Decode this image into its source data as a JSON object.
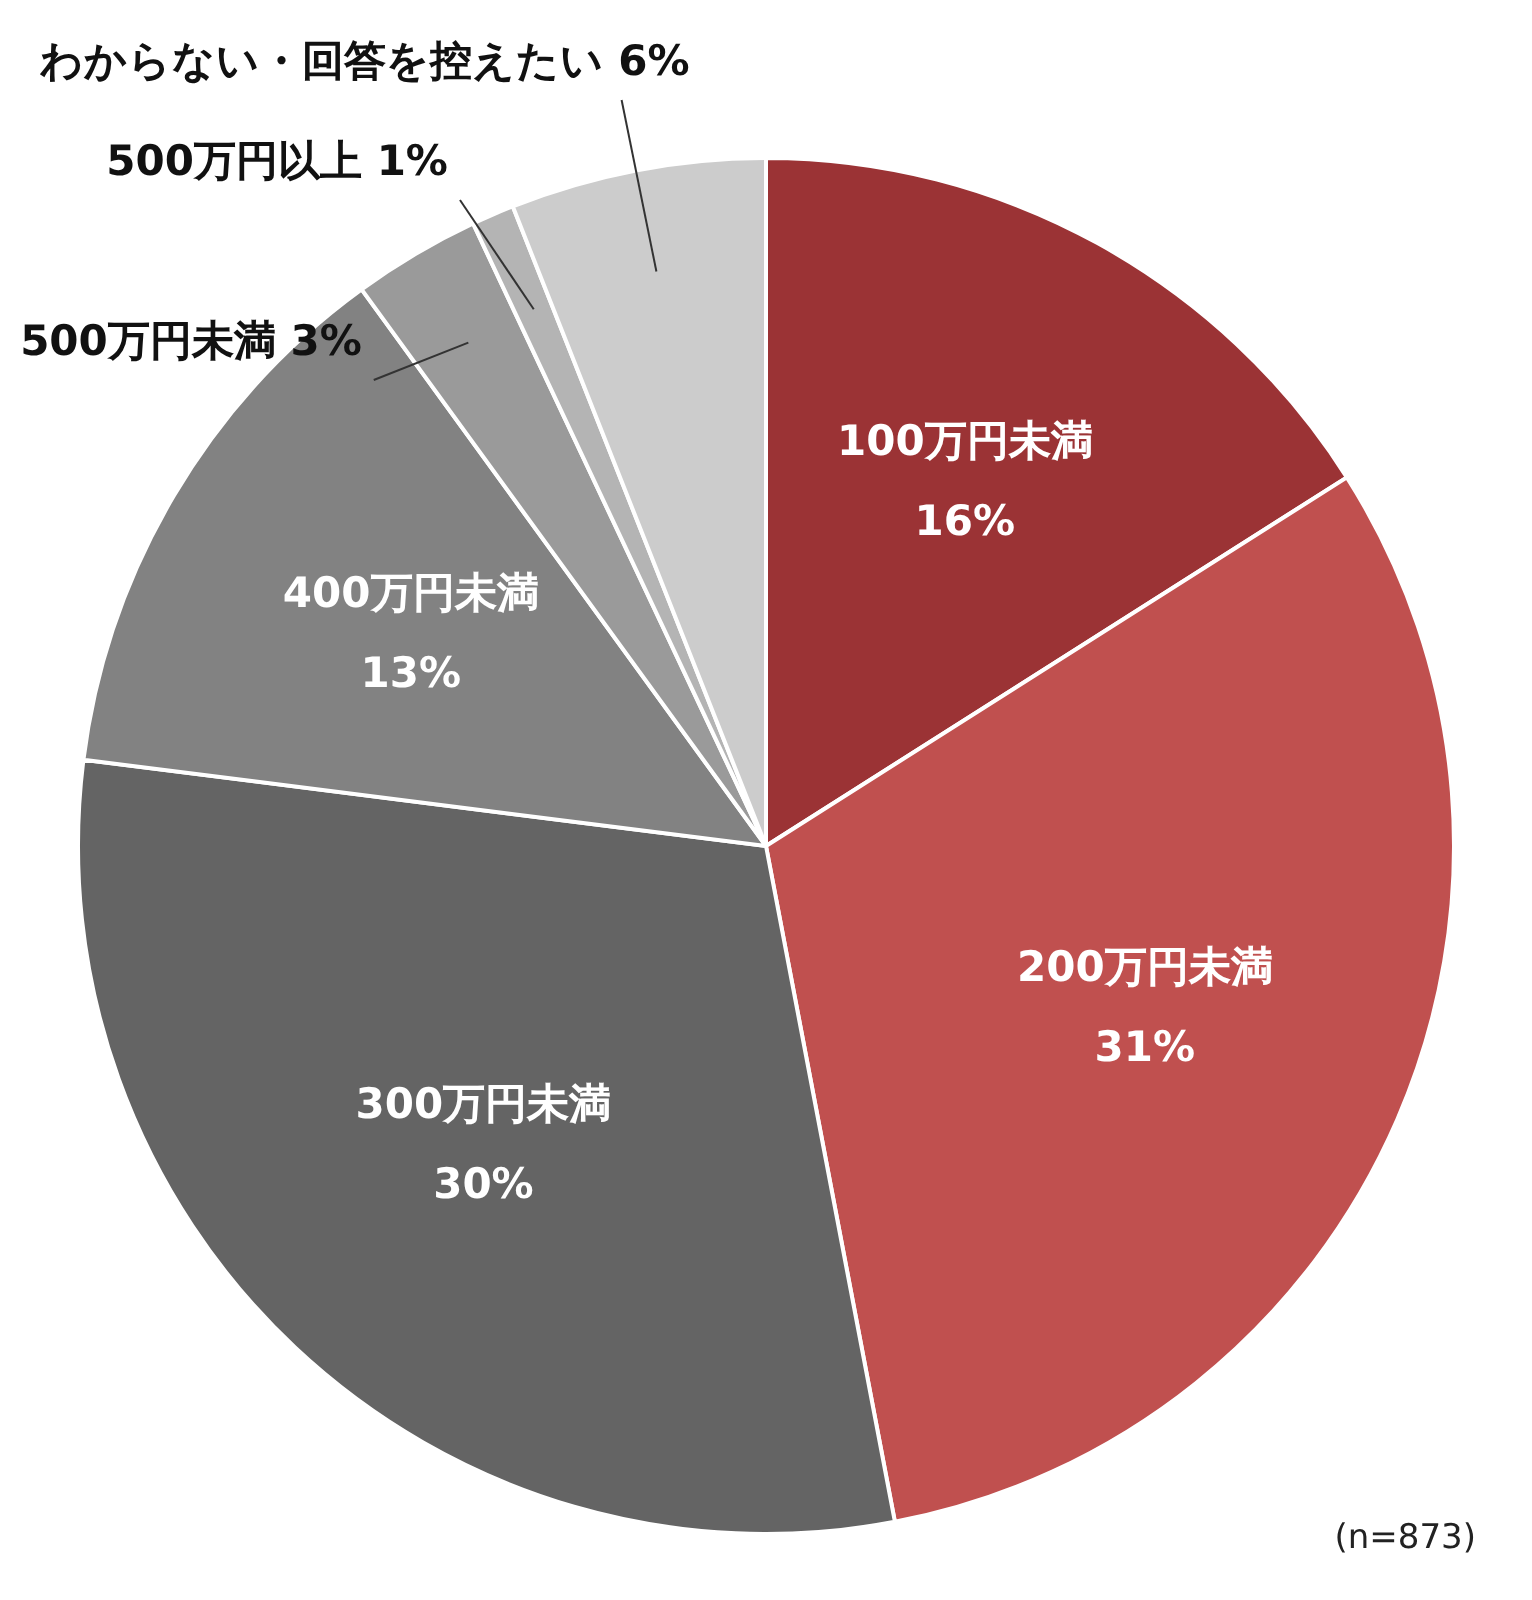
{
  "chart_data": {
    "type": "pie",
    "categories": [
      "100万円未満",
      "200万円未満",
      "300万円未満",
      "400万円未満",
      "500万円未満",
      "500万円以上",
      "わからない・回答を控えたい"
    ],
    "values": [
      16,
      31,
      30,
      13,
      3,
      1,
      6
    ],
    "value_labels": [
      "16%",
      "31%",
      "30%",
      "13%",
      "3%",
      "1%",
      "6%"
    ],
    "colors": [
      "#9b3335",
      "#c0504f",
      "#646464",
      "#828282",
      "#9a9a9a",
      "#b4b4b4",
      "#cccccc"
    ],
    "legend": false,
    "annotations": [
      "(n=873)"
    ]
  }
}
